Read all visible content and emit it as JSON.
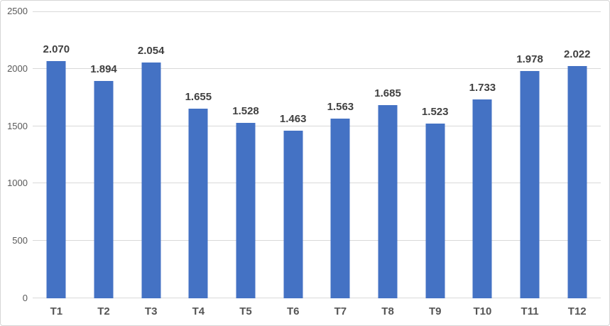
{
  "chart_data": {
    "type": "bar",
    "title": "",
    "xlabel": "",
    "ylabel": "",
    "categories": [
      "T1",
      "T2",
      "T3",
      "T4",
      "T5",
      "T6",
      "T7",
      "T8",
      "T9",
      "T10",
      "T11",
      "T12"
    ],
    "values": [
      2070,
      1894,
      2054,
      1655,
      1528,
      1463,
      1563,
      1685,
      1523,
      1733,
      1978,
      2022
    ],
    "data_labels": [
      "2.070",
      "1.894",
      "2.054",
      "1.655",
      "1.528",
      "1.463",
      "1.563",
      "1.685",
      "1.523",
      "1.733",
      "1.978",
      "2.022"
    ],
    "ylim": [
      0,
      2500
    ],
    "ytick_labels": [
      "0",
      "500",
      "1000",
      "1500",
      "2000",
      "2500"
    ],
    "ytick_values": [
      0,
      500,
      1000,
      1500,
      2000,
      2500
    ],
    "grid": true,
    "legend": false,
    "colors": {
      "bar_fill": "#4472c4",
      "gridline": "#d9d9d9",
      "axis_tick_label": "#595959",
      "x_tick_label": "#555555",
      "data_label": "#404040",
      "chart_border": "#d6d6d6",
      "background": "#ffffff"
    }
  }
}
